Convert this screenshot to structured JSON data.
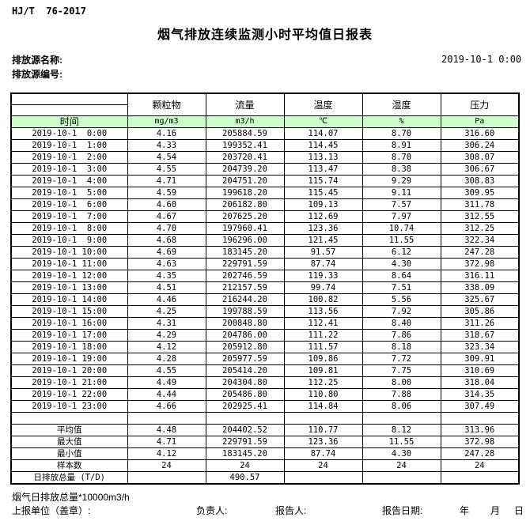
{
  "header": {
    "standard": "HJ/T  76-2017",
    "title": "烟气排放连续监测小时平均值日报表",
    "source_name_label": "排放源名称:",
    "source_id_label": "排放源编号:",
    "datetime": "2019-10-1 0:00"
  },
  "table": {
    "time_label": "时间",
    "columns": [
      "颗粒物",
      "流量",
      "温度",
      "湿度",
      "压力"
    ],
    "units": [
      "mg/m3",
      "m3/h",
      "℃",
      "%",
      "Pa"
    ],
    "unit_row_bg": "#ccffcc",
    "rows": [
      [
        "2019-10-1  0:00",
        "4.16",
        "205884.59",
        "114.07",
        "8.70",
        "316.60"
      ],
      [
        "2019-10-1  1:00",
        "4.33",
        "199352.41",
        "114.45",
        "8.91",
        "306.24"
      ],
      [
        "2019-10-1  2:00",
        "4.54",
        "203720.41",
        "113.13",
        "8.70",
        "308.07"
      ],
      [
        "2019-10-1  3:00",
        "4.55",
        "204739.20",
        "113.47",
        "8.38",
        "306.67"
      ],
      [
        "2019-10-1  4:00",
        "4.71",
        "204751.20",
        "115.74",
        "9.29",
        "308.83"
      ],
      [
        "2019-10-1  5:00",
        "4.59",
        "199618.20",
        "115.45",
        "9.11",
        "309.95"
      ],
      [
        "2019-10-1  6:00",
        "4.60",
        "206182.80",
        "109.13",
        "7.57",
        "311.78"
      ],
      [
        "2019-10-1  7:00",
        "4.67",
        "207625.20",
        "112.69",
        "7.97",
        "312.55"
      ],
      [
        "2019-10-1  8:00",
        "4.70",
        "197960.41",
        "123.36",
        "10.74",
        "312.25"
      ],
      [
        "2019-10-1  9:00",
        "4.68",
        "196296.00",
        "121.45",
        "11.55",
        "322.34"
      ],
      [
        "2019-10-1 10:00",
        "4.69",
        "183145.20",
        "91.57",
        "6.12",
        "247.28"
      ],
      [
        "2019-10-1 11:00",
        "4.63",
        "229791.59",
        "87.74",
        "4.30",
        "372.98"
      ],
      [
        "2019-10-1 12:00",
        "4.35",
        "202746.59",
        "119.33",
        "8.64",
        "316.11"
      ],
      [
        "2019-10-1 13:00",
        "4.51",
        "212157.59",
        "99.74",
        "7.51",
        "338.09"
      ],
      [
        "2019-10-1 14:00",
        "4.46",
        "216244.20",
        "100.82",
        "5.56",
        "325.67"
      ],
      [
        "2019-10-1 15:00",
        "4.25",
        "199788.59",
        "113.56",
        "7.92",
        "305.86"
      ],
      [
        "2019-10-1 16:00",
        "4.31",
        "200848.80",
        "112.41",
        "8.40",
        "311.26"
      ],
      [
        "2019-10-1 17:00",
        "4.29",
        "204786.00",
        "111.22",
        "7.86",
        "318.67"
      ],
      [
        "2019-10-1 18:00",
        "4.12",
        "205912.80",
        "111.57",
        "8.18",
        "323.34"
      ],
      [
        "2019-10-1 19:00",
        "4.28",
        "205977.59",
        "109.86",
        "7.72",
        "309.91"
      ],
      [
        "2019-10-1 20:00",
        "4.55",
        "205414.20",
        "109.81",
        "7.75",
        "310.69"
      ],
      [
        "2019-10-1 21:00",
        "4.49",
        "204304.80",
        "112.25",
        "8.00",
        "318.04"
      ],
      [
        "2019-10-1 22:00",
        "4.44",
        "205486.80",
        "110.80",
        "7.88",
        "314.35"
      ],
      [
        "2019-10-1 23:00",
        "4.66",
        "202925.41",
        "114.84",
        "8.06",
        "307.49"
      ]
    ],
    "summary_rows": [
      [
        "平均值",
        "4.48",
        "204402.52",
        "110.77",
        "8.12",
        "313.96"
      ],
      [
        "最大值",
        "4.71",
        "229791.59",
        "123.36",
        "11.55",
        "372.98"
      ],
      [
        "最小值",
        "4.12",
        "183145.20",
        "87.74",
        "4.30",
        "247.28"
      ],
      [
        "样本数",
        "24",
        "24",
        "24",
        "24",
        "24"
      ],
      [
        "日排放总量 (T/D)",
        "",
        "490.57",
        "",
        "",
        ""
      ]
    ]
  },
  "footer": {
    "note": "烟气日排放总量*10000m3/h",
    "report_unit_label": "上报单位（盖章）:",
    "responsible_label": "负责人:",
    "reporter_label": "报告人:",
    "report_date_label": "报告日期:",
    "year_label": "年",
    "month_label": "月",
    "day_label": "日"
  }
}
